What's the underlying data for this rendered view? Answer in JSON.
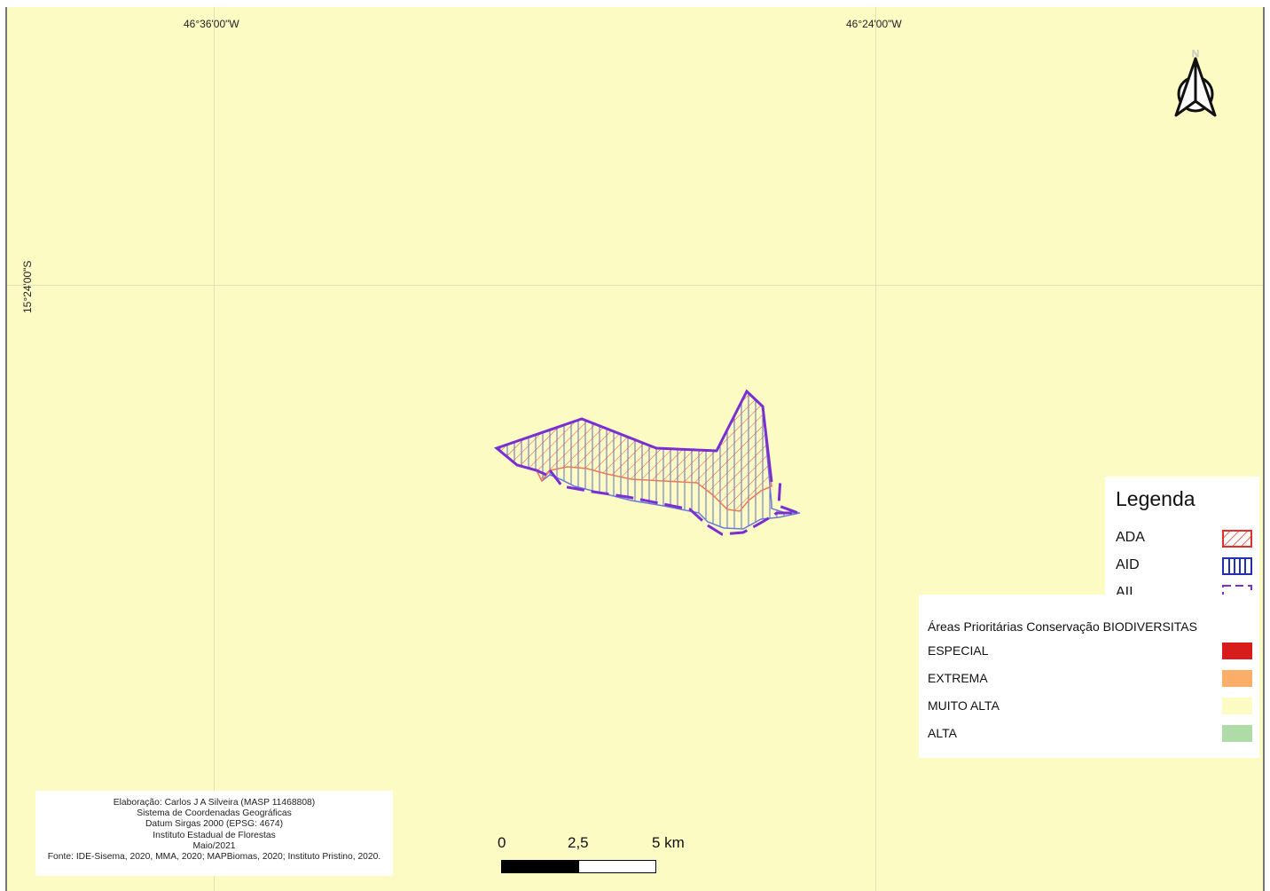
{
  "grid": {
    "lon_labels": [
      "46°36'00\"W",
      "46°24'00\"W"
    ],
    "lat_labels": [
      "15°24'00\"S"
    ]
  },
  "north_arrow": {
    "icon": "north-arrow-icon",
    "letter": "N"
  },
  "legend": {
    "title": "Legenda",
    "items": [
      {
        "label": "ADA",
        "symbol": "red-diagonal-hatch",
        "color": "#e0302a"
      },
      {
        "label": "AID",
        "symbol": "blue-vertical-hatch",
        "color": "#2230b8"
      },
      {
        "label": "AII",
        "symbol": "purple-dashed-outline",
        "color": "#7a2fd0"
      }
    ],
    "priority_title": "Áreas Prioritárias Conservação BIODIVERSITAS",
    "priority_items": [
      {
        "label": "ESPECIAL",
        "color": "#d81b1b"
      },
      {
        "label": "EXTREMA",
        "color": "#fbad6a"
      },
      {
        "label": "MUITO ALTA",
        "color": "#fdfbc4"
      },
      {
        "label": "ALTA",
        "color": "#aedca6"
      }
    ]
  },
  "credits": [
    "Elaboração: Carlos J A Silveira (MASP 11468808)",
    "Sistema de Coordenadas Geográficas",
    "Datum Sirgas 2000 (EPSG: 4674)",
    "Instituto Estadual de Florestas",
    "Maio/2021",
    "Fonte: IDE-Sisema, 2020, MMA, 2020; MAPBiomas, 2020; Instituto Pristino, 2020."
  ],
  "scalebar": {
    "labels": [
      "0",
      "2,5",
      "5 km"
    ]
  },
  "colors": {
    "background": "#fdfbc4",
    "ada": "#e0302a",
    "aid": "#2230b8",
    "aii": "#7a2fd0"
  }
}
